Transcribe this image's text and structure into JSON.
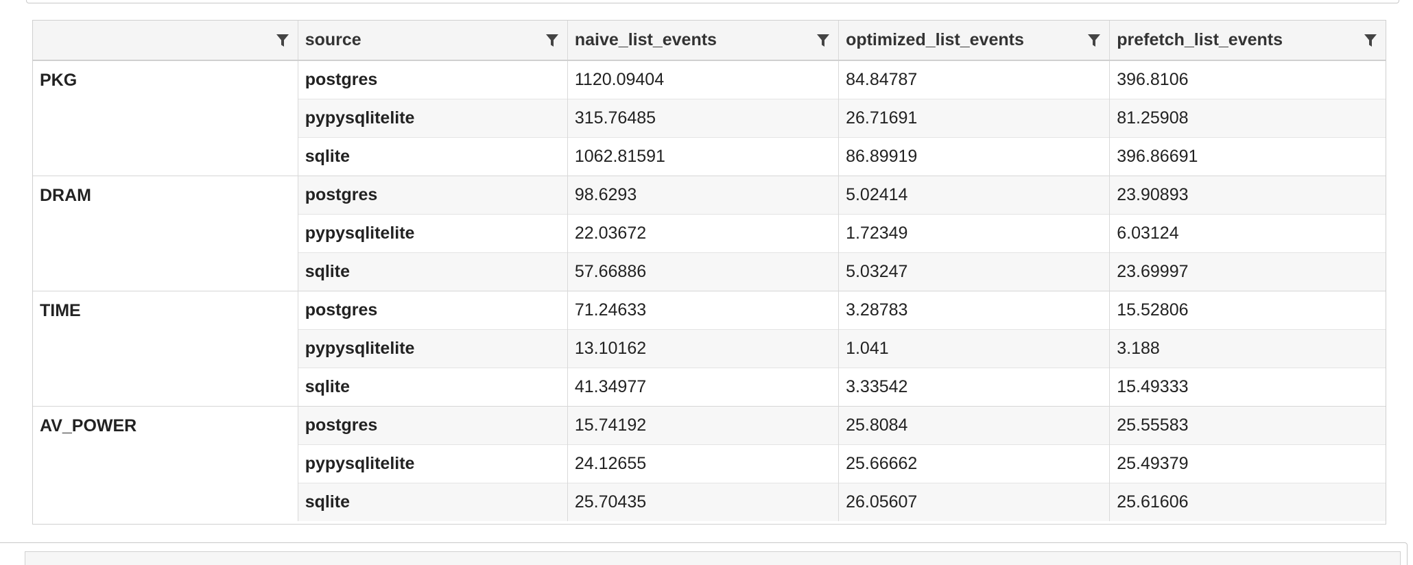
{
  "table": {
    "columns": [
      {
        "label": ""
      },
      {
        "label": "source"
      },
      {
        "label": "naive_list_events"
      },
      {
        "label": "optimized_list_events"
      },
      {
        "label": "prefetch_list_events"
      }
    ],
    "groups": [
      {
        "name": "PKG",
        "rows": [
          {
            "source": "postgres",
            "naive": "1120.09404",
            "optimized": "84.84787",
            "prefetch": "396.8106"
          },
          {
            "source": "pypysqlitelite",
            "naive": "315.76485",
            "optimized": "26.71691",
            "prefetch": "81.25908"
          },
          {
            "source": "sqlite",
            "naive": "1062.81591",
            "optimized": "86.89919",
            "prefetch": "396.86691"
          }
        ]
      },
      {
        "name": "DRAM",
        "rows": [
          {
            "source": "postgres",
            "naive": "98.6293",
            "optimized": "5.02414",
            "prefetch": "23.90893"
          },
          {
            "source": "pypysqlitelite",
            "naive": "22.03672",
            "optimized": "1.72349",
            "prefetch": "6.03124"
          },
          {
            "source": "sqlite",
            "naive": "57.66886",
            "optimized": "5.03247",
            "prefetch": "23.69997"
          }
        ]
      },
      {
        "name": "TIME",
        "rows": [
          {
            "source": "postgres",
            "naive": "71.24633",
            "optimized": "3.28783",
            "prefetch": "15.52806"
          },
          {
            "source": "pypysqlitelite",
            "naive": "13.10162",
            "optimized": "1.041",
            "prefetch": "3.188"
          },
          {
            "source": "sqlite",
            "naive": "41.34977",
            "optimized": "3.33542",
            "prefetch": "15.49333"
          }
        ]
      },
      {
        "name": "AV_POWER",
        "rows": [
          {
            "source": "postgres",
            "naive": "15.74192",
            "optimized": "25.8084",
            "prefetch": "25.55583"
          },
          {
            "source": "pypysqlitelite",
            "naive": "24.12655",
            "optimized": "25.66662",
            "prefetch": "25.49379"
          },
          {
            "source": "sqlite",
            "naive": "25.70435",
            "optimized": "26.05607",
            "prefetch": "25.61606"
          }
        ]
      }
    ]
  },
  "icons": {
    "column_filter": "filter-icon"
  },
  "colors": {
    "header_bg": "#f5f5f5",
    "stripe_bg": "#f7f7f7",
    "border": "#cfcfcf",
    "icon": "#444444"
  }
}
